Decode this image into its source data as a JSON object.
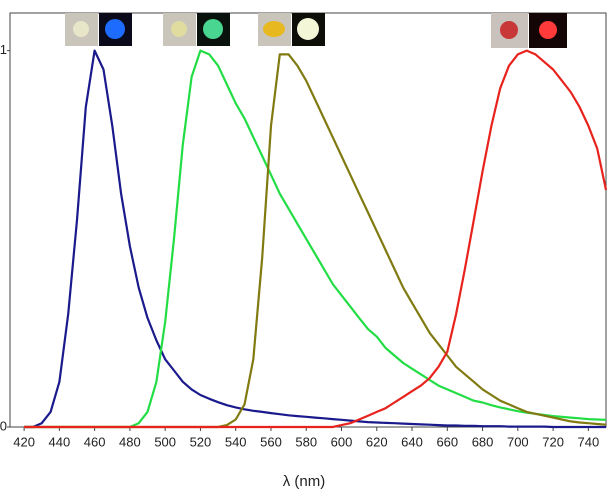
{
  "chart_data": {
    "type": "line",
    "x_label": "λ (nm)",
    "x": [
      420,
      425,
      430,
      435,
      440,
      445,
      450,
      455,
      460,
      465,
      470,
      475,
      480,
      485,
      490,
      495,
      500,
      505,
      510,
      515,
      520,
      525,
      530,
      535,
      540,
      545,
      550,
      555,
      560,
      565,
      570,
      575,
      580,
      585,
      590,
      595,
      600,
      605,
      610,
      615,
      620,
      625,
      630,
      635,
      640,
      645,
      650,
      655,
      660,
      665,
      670,
      675,
      680,
      685,
      690,
      695,
      700,
      705,
      710,
      715,
      720,
      725,
      730,
      735,
      740,
      745,
      750
    ],
    "series": [
      {
        "color": "#1a1a8c",
        "values": [
          0,
          0,
          0.01,
          0.04,
          0.12,
          0.3,
          0.55,
          0.85,
          1.0,
          0.95,
          0.8,
          0.62,
          0.48,
          0.37,
          0.29,
          0.23,
          0.18,
          0.15,
          0.12,
          0.1,
          0.085,
          0.075,
          0.066,
          0.058,
          0.052,
          0.047,
          0.043,
          0.04,
          0.037,
          0.034,
          0.031,
          0.029,
          0.027,
          0.025,
          0.023,
          0.021,
          0.019,
          0.017,
          0.015,
          0.013,
          0.012,
          0.011,
          0.01,
          0.009,
          0.008,
          0.007,
          0.006,
          0.005,
          0.004,
          0.004,
          0.003,
          0.003,
          0.002,
          0.002,
          0.002,
          0.001,
          0.001,
          0.001,
          0.001,
          0.001,
          0,
          0,
          0,
          0,
          0,
          0,
          0
        ]
      },
      {
        "color": "#22dd44",
        "values": [
          0,
          0,
          0,
          0,
          0,
          0,
          0,
          0,
          0,
          0,
          0,
          0,
          0,
          0.01,
          0.04,
          0.12,
          0.28,
          0.5,
          0.75,
          0.93,
          1.0,
          0.99,
          0.96,
          0.91,
          0.86,
          0.82,
          0.77,
          0.72,
          0.67,
          0.62,
          0.58,
          0.54,
          0.5,
          0.46,
          0.42,
          0.38,
          0.35,
          0.32,
          0.29,
          0.26,
          0.24,
          0.21,
          0.19,
          0.17,
          0.155,
          0.14,
          0.125,
          0.11,
          0.1,
          0.09,
          0.08,
          0.07,
          0.065,
          0.058,
          0.052,
          0.047,
          0.042,
          0.038,
          0.035,
          0.032,
          0.029,
          0.027,
          0.025,
          0.023,
          0.021,
          0.02,
          0.019
        ]
      },
      {
        "color": "#807a10",
        "values": [
          0,
          0,
          0,
          0,
          0,
          0,
          0,
          0,
          0,
          0,
          0,
          0,
          0,
          0,
          0,
          0,
          0,
          0,
          0,
          0,
          0,
          0,
          0,
          0.005,
          0.02,
          0.06,
          0.18,
          0.45,
          0.8,
          0.99,
          0.99,
          0.96,
          0.92,
          0.87,
          0.82,
          0.77,
          0.72,
          0.67,
          0.62,
          0.57,
          0.52,
          0.47,
          0.42,
          0.37,
          0.33,
          0.29,
          0.25,
          0.22,
          0.19,
          0.16,
          0.14,
          0.12,
          0.1,
          0.085,
          0.07,
          0.06,
          0.05,
          0.04,
          0.035,
          0.03,
          0.025,
          0.02,
          0.015,
          0.012,
          0.01,
          0.008,
          0.006
        ]
      },
      {
        "color": "#e8221c",
        "values": [
          0,
          0,
          0,
          0,
          0,
          0,
          0,
          0,
          0,
          0,
          0,
          0,
          0,
          0,
          0,
          0,
          0,
          0,
          0,
          0,
          0,
          0,
          0,
          0,
          0,
          0,
          0,
          0,
          0,
          0,
          0,
          0,
          0,
          0,
          0,
          0,
          0.005,
          0.01,
          0.02,
          0.03,
          0.04,
          0.05,
          0.065,
          0.08,
          0.095,
          0.11,
          0.13,
          0.16,
          0.2,
          0.3,
          0.42,
          0.55,
          0.68,
          0.8,
          0.9,
          0.96,
          0.99,
          1.0,
          0.99,
          0.97,
          0.95,
          0.92,
          0.89,
          0.85,
          0.8,
          0.74,
          0.63
        ]
      }
    ],
    "xlim": [
      412,
      750
    ],
    "xticks": [
      420,
      440,
      460,
      480,
      500,
      520,
      540,
      560,
      580,
      600,
      620,
      640,
      660,
      680,
      700,
      720,
      740
    ],
    "ylim": [
      0,
      1.1
    ],
    "yticks": [
      0,
      1
    ],
    "grid": false
  }
}
